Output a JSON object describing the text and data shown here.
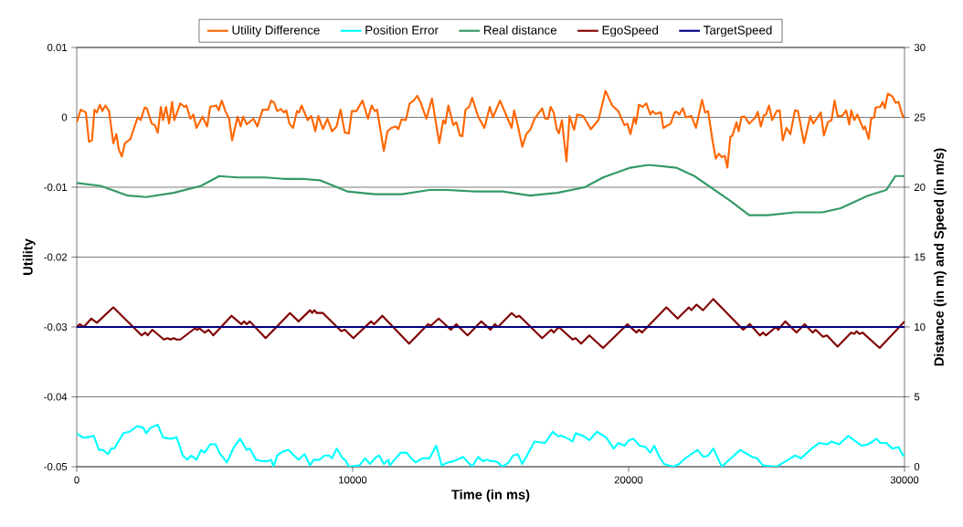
{
  "chart_data": {
    "type": "line",
    "xlabel": "Time (in ms)",
    "ylabel": "Utility",
    "y2label": "Distance (in m) and Speed (in m/s)",
    "xlim": [
      0,
      30000
    ],
    "xticks": [
      0,
      10000,
      20000,
      30000
    ],
    "ylim": [
      -0.05,
      0.01
    ],
    "yticks": [
      -0.05,
      -0.04,
      -0.03,
      -0.02,
      -0.01,
      0,
      0.01
    ],
    "y2lim": [
      0,
      30
    ],
    "y2ticks": [
      0,
      5,
      10,
      15,
      20,
      25,
      30
    ],
    "grid": "y",
    "legend": "top",
    "series": [
      {
        "name": "Utility Difference",
        "color": "#ff6600",
        "x": [
          0,
          144,
          332,
          442,
          553,
          641,
          729,
          840,
          928,
          1038,
          1171,
          1325,
          1436,
          1524,
          1634,
          1745,
          1944,
          2208,
          2319,
          2462,
          2540,
          2716,
          2827,
          2937,
          3048,
          3125,
          3235,
          3346,
          3456,
          3533,
          3754,
          3898,
          3975,
          4118,
          4229,
          4339,
          4560,
          4726,
          4836,
          5057,
          5145,
          5256,
          5388,
          5520,
          5631,
          5830,
          5940,
          6028,
          6161,
          6404,
          6547,
          6735,
          6934,
          7044,
          7154,
          7265,
          7397,
          7508,
          7596,
          7706,
          7839,
          7982,
          8060,
          8148,
          8369,
          8501,
          8645,
          8755,
          8921,
          9086,
          9252,
          9418,
          9561,
          9716,
          9859,
          9970,
          10135,
          10356,
          10555,
          10687,
          10798,
          10886,
          11129,
          11261,
          11405,
          11570,
          11659,
          11769,
          11924,
          12067,
          12211,
          12343,
          12454,
          12674,
          12873,
          13138,
          13282,
          13359,
          13469,
          13646,
          13756,
          13889,
          13977,
          14088,
          14220,
          14330,
          14551,
          14772,
          14971,
          15081,
          15342,
          15596,
          15762,
          15850,
          15982,
          16148,
          16292,
          16446,
          16590,
          16866,
          16976,
          17086,
          17175,
          17285,
          17396,
          17473,
          17583,
          17749,
          17859,
          18025,
          18135,
          18356,
          18632,
          18908,
          19162,
          19405,
          19626,
          19846,
          19957,
          20067,
          20200,
          20266,
          20376,
          20509,
          20641,
          20785,
          20862,
          20972,
          21171,
          21260,
          21525,
          21668,
          21745,
          21834,
          21966,
          22076,
          22275,
          22441,
          22662,
          22772,
          22882,
          23048,
          23158,
          23269,
          23379,
          23490,
          23578,
          23688,
          23766,
          23909,
          23987,
          24097,
          24207,
          24373,
          24594,
          24682,
          24792,
          24903,
          24980,
          25090,
          25201,
          25366,
          25477,
          25587,
          25720,
          25863,
          26029,
          26139,
          26360,
          26581,
          26691,
          26967,
          27078,
          27221,
          27354,
          27464,
          27574,
          27740,
          27884,
          27994,
          28071,
          28182,
          28292,
          28513,
          28568,
          28700,
          28789,
          28899,
          28955,
          29120,
          29208,
          29286,
          29396,
          29562,
          29672,
          29782,
          29948,
          30000
        ],
        "values": [
          -0.0007,
          0.0011,
          0.0007,
          -0.0035,
          -0.0033,
          0.0011,
          0.0007,
          0.0018,
          0.0009,
          0.0017,
          0.0009,
          -0.0037,
          -0.0024,
          -0.0046,
          -0.0056,
          -0.0037,
          -0.0031,
          0,
          -0.0004,
          0.0014,
          0.0013,
          -0.0009,
          -0.0011,
          -0.0022,
          0.0015,
          -0.0004,
          0.0015,
          -0.0009,
          0.0022,
          -0.0004,
          0.002,
          0.0015,
          0.0017,
          -0.0002,
          0.0004,
          -0.0015,
          0.0001,
          -0.0013,
          0.0015,
          0.0017,
          0.001,
          0.0024,
          0.0009,
          -0.0002,
          -0.0033,
          0.0001,
          -0.0013,
          0.0001,
          -0.001,
          -0.0002,
          -0.0013,
          0.0011,
          0.0011,
          0.0024,
          0.0021,
          0.0009,
          0.0012,
          0.0007,
          0.001,
          -0.0009,
          -0.0015,
          0.0009,
          0.0007,
          0.0017,
          -0.0004,
          0.0002,
          -0.002,
          0.0002,
          -0.0017,
          -0.0002,
          -0.002,
          -0.0013,
          0.0011,
          -0.0022,
          -0.0023,
          0.0009,
          0.0009,
          0.0024,
          -0.0002,
          0.0017,
          0.0009,
          0.0011,
          -0.0048,
          -0.002,
          -0.0015,
          -0.0013,
          -0.0017,
          -0.0003,
          -0.0004,
          0.002,
          0.0024,
          0.0031,
          0.0022,
          -0.0002,
          0.0027,
          -0.0037,
          -0.0004,
          -0.0009,
          0.0017,
          -0.0011,
          -0.0007,
          -0.0026,
          -0.0027,
          0.0011,
          0.0015,
          0.0028,
          0.0001,
          -0.0015,
          0.0015,
          0,
          0.0024,
          0,
          -0.0015,
          0.001,
          -0.0011,
          -0.0042,
          -0.0024,
          -0.0017,
          -0.0002,
          0.0013,
          -0.0002,
          -0.0002,
          0.0015,
          0.0007,
          -0.0017,
          -0.0023,
          -0.0004,
          -0.0063,
          0.0002,
          -0.0018,
          0.0004,
          0.0002,
          -0.0017,
          -0.0004,
          0.0038,
          0.0017,
          0.0009,
          -0.0011,
          -0.0009,
          -0.0024,
          0,
          -0.0009,
          0.0018,
          0.0015,
          0.002,
          0.0004,
          0.0009,
          0.0005,
          0.0007,
          -0.0015,
          -0.0009,
          0.0007,
          0.0008,
          0.0004,
          0.0013,
          0,
          0.0002,
          -0.0015,
          0.0025,
          0.0007,
          0.0009,
          -0.0035,
          -0.0059,
          -0.0052,
          -0.0057,
          -0.0055,
          -0.0072,
          -0.0028,
          -0.0026,
          -0.0007,
          -0.002,
          0.0001,
          0.0001,
          -0.0009,
          0,
          0.0008,
          -0.0013,
          0.0003,
          0.0004,
          0.0017,
          -0.0004,
          0.0009,
          0.001,
          -0.0033,
          -0.0015,
          -0.0024,
          0.001,
          0.0009,
          -0.0037,
          0.0002,
          -0.0009,
          0.0007,
          -0.0026,
          -0.0007,
          -0.0004,
          0.0024,
          0.0002,
          0.0002,
          0.001,
          -0.001,
          0.001,
          -0.0004,
          0.0004,
          -0.0017,
          -0.0013,
          -0.0031,
          -0.0002,
          0,
          0.0014,
          0.0015,
          0.0022,
          0.0013,
          0.0034,
          0.003,
          0.0021,
          0.0022,
          0,
          0.0002
        ]
      },
      {
        "name": "Position Error",
        "color": "#00ffff",
        "axis": "y2",
        "x": [
          0,
          199,
          365,
          619,
          806,
          950,
          1138,
          1248,
          1358,
          1690,
          1910,
          2186,
          2407,
          2518,
          2683,
          2937,
          3125,
          3401,
          3622,
          3842,
          4008,
          4152,
          4339,
          4505,
          4637,
          4836,
          5035,
          5167,
          5443,
          5697,
          5918,
          6161,
          6271,
          6492,
          6713,
          6934,
          7044,
          7132,
          7265,
          7486,
          7684,
          7817,
          8038,
          8258,
          8457,
          8590,
          8810,
          8976,
          9142,
          9252,
          9418,
          9638,
          9727,
          9859,
          10246,
          10444,
          10632,
          10853,
          10963,
          11129,
          11294,
          11350,
          11515,
          11736,
          11957,
          12122,
          12288,
          12509,
          12785,
          13028,
          13226,
          13447,
          13668,
          13999,
          14330,
          14551,
          14717,
          14882,
          14989,
          15154,
          15265,
          15430,
          15651,
          15817,
          15982,
          16148,
          16590,
          16976,
          17252,
          17418,
          17583,
          17804,
          17970,
          18080,
          18356,
          18577,
          18853,
          19184,
          19460,
          19626,
          19846,
          20012,
          20178,
          20398,
          20619,
          20785,
          20928,
          21116,
          21282,
          21613,
          21834,
          22054,
          22275,
          22496,
          22717,
          22882,
          23070,
          23379,
          23710,
          24042,
          24483,
          24649,
          24870,
          25366,
          25698,
          26029,
          26250,
          26636,
          26912,
          27188,
          27354,
          27630,
          27961,
          28237,
          28458,
          28678,
          28988,
          29120,
          29341,
          29562,
          29782,
          29948,
          30000
        ],
        "values": [
          2.4,
          2.1,
          2.1,
          2.2,
          1.2,
          1.2,
          0.9,
          1.3,
          1.3,
          2.4,
          2.5,
          2.9,
          2.8,
          2.4,
          2.8,
          3.0,
          2.1,
          2.0,
          2.1,
          0.8,
          0.5,
          0.8,
          0.5,
          1.2,
          1.0,
          1.6,
          1.6,
          1.0,
          0.3,
          1.4,
          2.0,
          1.2,
          1.3,
          0.5,
          0.4,
          0.4,
          0.5,
          0.0,
          0.8,
          1.1,
          1.2,
          0.9,
          0.5,
          0.9,
          0.1,
          0.5,
          0.5,
          0.8,
          0.8,
          0.6,
          1.3,
          0.6,
          0.5,
          0.0,
          0.1,
          0.6,
          0.2,
          0.7,
          0.8,
          0.2,
          0.5,
          0.1,
          0.5,
          1.0,
          1.0,
          0.6,
          0.3,
          0.6,
          0.6,
          1.5,
          0.1,
          0.3,
          0.4,
          0.7,
          0.0,
          0.7,
          0.4,
          0.5,
          0.4,
          0.4,
          0.3,
          0.0,
          0.3,
          0.8,
          0.9,
          0.2,
          1.8,
          1.7,
          2.5,
          2.2,
          2.2,
          2.0,
          1.8,
          2.4,
          2.2,
          1.9,
          2.5,
          2.1,
          1.3,
          1.7,
          1.5,
          1.9,
          2.0,
          1.5,
          1.4,
          1.0,
          1.5,
          0.7,
          0.2,
          0.0,
          0.2,
          0.6,
          0.9,
          1.2,
          0.7,
          0.8,
          1.3,
          0.0,
          0.6,
          1.2,
          0.7,
          0.6,
          0.1,
          0.0,
          0.4,
          0.8,
          0.6,
          1.3,
          1.7,
          1.6,
          1.8,
          1.6,
          2.2,
          1.8,
          1.5,
          1.6,
          2.0,
          1.7,
          1.7,
          1.3,
          1.4,
          0.8,
          0.9
        ]
      },
      {
        "name": "Real distance",
        "color": "#339966",
        "axis": "y2",
        "x": [
          0,
          861,
          1854,
          2517,
          3510,
          4503,
          5166,
          5828,
          6821,
          7483,
          8146,
          8808,
          9801,
          10795,
          11788,
          12781,
          13444,
          14437,
          15430,
          16424,
          17417,
          18411,
          19073,
          20066,
          20728,
          21722,
          22384,
          23709,
          24371,
          25033,
          26026,
          27020,
          27682,
          28675,
          29338,
          29669,
          30000
        ],
        "values": [
          20.3,
          20.1,
          19.4,
          19.3,
          19.6,
          20.1,
          20.8,
          20.7,
          20.7,
          20.6,
          20.6,
          20.5,
          19.7,
          19.5,
          19.5,
          19.8,
          19.8,
          19.7,
          19.7,
          19.4,
          19.6,
          20.0,
          20.7,
          21.4,
          21.6,
          21.4,
          20.8,
          19.0,
          18.0,
          18.0,
          18.2,
          18.2,
          18.5,
          19.4,
          19.8,
          20.8,
          20.8
        ]
      },
      {
        "name": "EgoSpeed",
        "color": "#800000",
        "axis": "y2",
        "x": [
          0,
          111,
          254,
          530,
          729,
          1325,
          2352,
          2484,
          2573,
          2738,
          3158,
          3290,
          3401,
          3511,
          3622,
          3754,
          4284,
          4361,
          4450,
          4637,
          4781,
          4946,
          5609,
          5962,
          6072,
          6161,
          6271,
          6845,
          7728,
          8038,
          8457,
          8534,
          8612,
          8700,
          8921,
          9583,
          9716,
          10025,
          10665,
          10776,
          11074,
          12045,
          12730,
          12840,
          13116,
          13558,
          13756,
          14165,
          14662,
          14993,
          15154,
          15265,
          15762,
          15927,
          16038,
          16866,
          17197,
          17285,
          17473,
          17970,
          18080,
          18279,
          18577,
          19074,
          19957,
          20288,
          20376,
          20487,
          21370,
          21778,
          22187,
          22275,
          22463,
          22695,
          23070,
          24152,
          24395,
          24759,
          24870,
          24980,
          25344,
          25422,
          25676,
          26084,
          26382,
          26669,
          26780,
          27044,
          27188,
          27574,
          28071,
          28182,
          28259,
          28369,
          28480,
          29098,
          30000
        ],
        "values": [
          10.0,
          10.2,
          10.0,
          10.6,
          10.3,
          11.4,
          9.4,
          9.6,
          9.4,
          9.8,
          9.1,
          9.2,
          9.1,
          9.2,
          9.1,
          9.1,
          9.9,
          9.8,
          9.9,
          9.6,
          9.8,
          9.4,
          10.8,
          10.2,
          10.4,
          10.2,
          10.4,
          9.2,
          11.0,
          10.4,
          11.2,
          11.0,
          11.2,
          11.0,
          11.0,
          9.7,
          9.8,
          9.2,
          10.4,
          10.2,
          10.8,
          8.8,
          10.2,
          10.1,
          10.6,
          9.8,
          10.2,
          9.4,
          10.4,
          9.8,
          10.2,
          10.0,
          11.0,
          10.7,
          10.8,
          9.2,
          9.8,
          9.6,
          10.0,
          9.1,
          9.2,
          8.8,
          9.4,
          8.5,
          10.2,
          9.6,
          9.8,
          9.6,
          11.4,
          10.6,
          11.4,
          11.2,
          11.6,
          11.2,
          12.0,
          9.8,
          10.2,
          9.4,
          9.6,
          9.4,
          10.0,
          9.8,
          10.4,
          9.6,
          10.2,
          9.6,
          9.8,
          9.3,
          9.4,
          8.6,
          9.6,
          9.5,
          9.7,
          9.5,
          9.6,
          8.5,
          10.4
        ]
      },
      {
        "name": "TargetSpeed",
        "color": "#000080",
        "axis": "y2",
        "x": [
          0,
          30000
        ],
        "values": [
          10,
          10
        ]
      }
    ]
  }
}
